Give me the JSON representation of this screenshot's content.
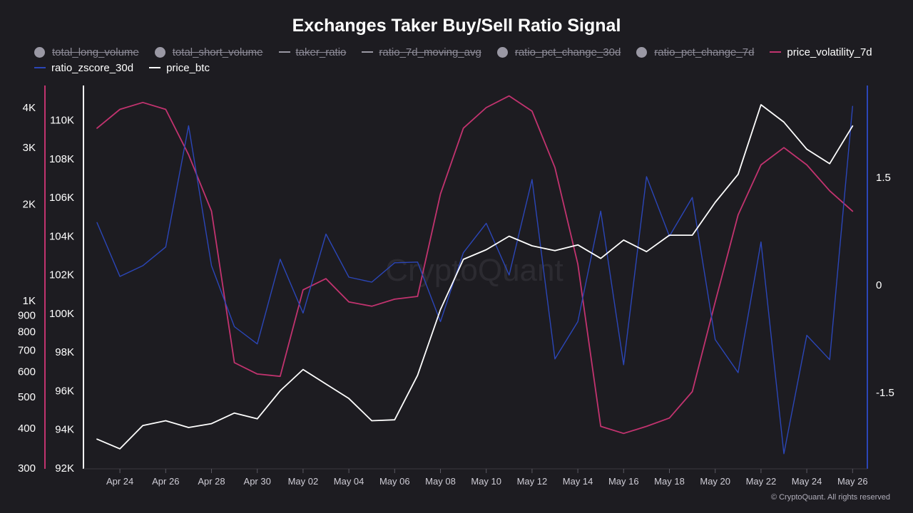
{
  "title": "Exchanges Taker Buy/Sell Ratio Signal",
  "footer": "© CryptoQuant. All rights reserved",
  "watermark": "CryptoQuant",
  "legend": [
    {
      "label": "total_long_volume",
      "marker": "dot",
      "color": "#9a98a4",
      "hidden": true
    },
    {
      "label": "total_short_volume",
      "marker": "dot",
      "color": "#9a98a4",
      "hidden": true
    },
    {
      "label": "taker_ratio",
      "marker": "line",
      "color": "#9a98a4",
      "hidden": true
    },
    {
      "label": "ratio_7d_moving_avg",
      "marker": "line",
      "color": "#9a98a4",
      "hidden": true
    },
    {
      "label": "ratio_pct_change_30d",
      "marker": "dot",
      "color": "#9a98a4",
      "hidden": true
    },
    {
      "label": "ratio_pct_change_7d",
      "marker": "dot",
      "color": "#9a98a4",
      "hidden": true
    },
    {
      "label": "price_volatility_7d",
      "marker": "line",
      "color": "#c2336f",
      "hidden": false
    },
    {
      "label": "ratio_zscore_30d",
      "marker": "line",
      "color": "#2b46b8",
      "hidden": false
    },
    {
      "label": "price_btc",
      "marker": "line",
      "color": "#ffffff",
      "hidden": false
    }
  ],
  "chart_data": {
    "type": "line",
    "title": "Exchanges Taker Buy/Sell Ratio Signal",
    "x": [
      "Apr 23",
      "Apr 24",
      "Apr 25",
      "Apr 26",
      "Apr 27",
      "Apr 28",
      "Apr 29",
      "Apr 30",
      "May 01",
      "May 02",
      "May 03",
      "May 04",
      "May 05",
      "May 06",
      "May 07",
      "May 08",
      "May 09",
      "May 10",
      "May 11",
      "May 12",
      "May 13",
      "May 14",
      "May 15",
      "May 16",
      "May 17",
      "May 18",
      "May 19",
      "May 20",
      "May 21",
      "May 22",
      "May 23",
      "May 24",
      "May 25",
      "May 26"
    ],
    "x_tick_labels": [
      "Apr 24",
      "Apr 26",
      "Apr 28",
      "Apr 30",
      "May 02",
      "May 04",
      "May 06",
      "May 08",
      "May 10",
      "May 12",
      "May 14",
      "May 16",
      "May 18",
      "May 20",
      "May 22",
      "May 24",
      "May 26"
    ],
    "axes": {
      "volatility": {
        "scale": "log",
        "range": [
          300,
          4500
        ],
        "color": "#c2336f",
        "ticks": [
          "300",
          "400",
          "500",
          "600",
          "700",
          "800",
          "900",
          "1K",
          "2K",
          "3K",
          "4K"
        ],
        "tick_values": [
          300,
          400,
          500,
          600,
          700,
          800,
          900,
          1000,
          2000,
          3000,
          4000
        ]
      },
      "price": {
        "scale": "linear",
        "range": [
          92000,
          111500
        ],
        "color": "#ffffff",
        "ticks": [
          "92K",
          "94K",
          "96K",
          "98K",
          "100K",
          "102K",
          "104K",
          "106K",
          "108K",
          "110K"
        ],
        "tick_values": [
          92000,
          94000,
          96000,
          98000,
          100000,
          102000,
          104000,
          106000,
          108000,
          110000
        ]
      },
      "zscore": {
        "scale": "linear",
        "range": [
          -2.55,
          2.7
        ],
        "color": "#2b46b8",
        "ticks": [
          "-1.5",
          "0",
          "1.5"
        ],
        "tick_values": [
          -1.5,
          0,
          1.5
        ]
      }
    },
    "series": [
      {
        "name": "price_volatility_7d",
        "axis": "volatility",
        "color": "#c2336f",
        "values": [
          3450,
          3950,
          4150,
          3950,
          2850,
          1900,
          640,
          590,
          580,
          1080,
          1170,
          990,
          960,
          1010,
          1030,
          2150,
          3450,
          4000,
          4350,
          3900,
          2600,
          1300,
          405,
          385,
          405,
          430,
          520,
          990,
          1850,
          2650,
          3000,
          2650,
          2200,
          1900
        ]
      },
      {
        "name": "ratio_zscore_30d",
        "axis": "zscore",
        "color": "#2b46b8",
        "values": [
          0.87,
          0.12,
          0.27,
          0.53,
          2.22,
          0.27,
          -0.58,
          -0.82,
          0.36,
          -0.39,
          0.71,
          0.11,
          0.04,
          0.31,
          0.32,
          -0.51,
          0.45,
          0.86,
          0.14,
          1.47,
          -1.03,
          -0.51,
          1.03,
          -1.11,
          1.51,
          0.68,
          1.22,
          -0.76,
          -1.22,
          0.6,
          -2.35,
          -0.7,
          -1.04,
          2.49
        ]
      },
      {
        "name": "price_btc",
        "axis": "price",
        "color": "#ffffff",
        "values": [
          93500,
          93000,
          94200,
          94450,
          94100,
          94300,
          94850,
          94550,
          96000,
          97100,
          96350,
          95600,
          94450,
          94500,
          96800,
          100200,
          102800,
          103300,
          104000,
          103500,
          103250,
          103550,
          102850,
          103800,
          103200,
          104050,
          104050,
          105750,
          107200,
          110800,
          109900,
          108500,
          107750,
          109700
        ]
      }
    ]
  }
}
